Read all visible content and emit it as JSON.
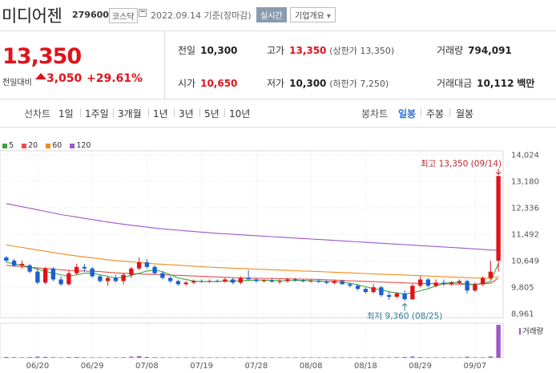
{
  "header": {
    "name": "미디어젠",
    "code": "279600",
    "market": "코스닥",
    "date": "2022.09.14 기준(장마감)",
    "live": "실시간",
    "info": "기업개요"
  },
  "quote": {
    "price": "13,350",
    "change_label": "전일대비",
    "change": "3,050",
    "change_pct": "+29.61%",
    "prev_label": "전일",
    "prev": "10,300",
    "open_label": "시가",
    "open": "10,650",
    "high_label": "고가",
    "high": "13,350",
    "high_note": "(상한가 13,350)",
    "low_label": "저가",
    "low": "10,300",
    "low_note": "(하한가 7,250)",
    "vol_label": "거래량",
    "vol": "794,091",
    "amt_label": "거래대금",
    "amt": "10,112",
    "amt_unit": "백만"
  },
  "period": {
    "line_label": "선차트",
    "line_tabs": [
      "1일",
      "1주일",
      "3개월",
      "1년",
      "3년",
      "5년",
      "10년"
    ],
    "candle_label": "봉차트",
    "candle_tabs": [
      "일봉",
      "주봉",
      "월봉"
    ],
    "active": "일봉"
  },
  "colors": {
    "up": "#e0131b",
    "down": "#1a5fd0",
    "ma5": "#3aa53a",
    "ma20": "#e84d4d",
    "ma60": "#f08a1c",
    "ma120": "#9b59c9"
  },
  "chart_data": {
    "type": "candlestick",
    "legend": [
      {
        "name": "5",
        "color": "#3aa53a"
      },
      {
        "name": "20",
        "color": "#e84d4d"
      },
      {
        "name": "60",
        "color": "#f08a1c"
      },
      {
        "name": "120",
        "color": "#9b59c9"
      }
    ],
    "y_ticks": [
      "14,024",
      "13,180",
      "12,336",
      "11,492",
      "10,649",
      "9,805",
      "8,961"
    ],
    "ylim": [
      8961,
      14024
    ],
    "x_ticks": [
      "06/20",
      "06/29",
      "07/08",
      "07/19",
      "07/28",
      "08/08",
      "08/18",
      "08/29",
      "09/07"
    ],
    "annot_high": "최고 13,350 (09/14)",
    "annot_low": "최저 9,360 (08/25)",
    "volume_label": "거래량",
    "candles": [
      {
        "d": "06/14",
        "o": 10750,
        "h": 10800,
        "l": 10600,
        "c": 10650
      },
      {
        "d": "06/15",
        "o": 10650,
        "h": 10700,
        "l": 10450,
        "c": 10500
      },
      {
        "d": "06/16",
        "o": 10500,
        "h": 10650,
        "l": 10400,
        "c": 10550
      },
      {
        "d": "06/17",
        "o": 10500,
        "h": 10550,
        "l": 10250,
        "c": 10300
      },
      {
        "d": "06/20",
        "o": 10300,
        "h": 10400,
        "l": 9900,
        "c": 9950
      },
      {
        "d": "06/21",
        "o": 9950,
        "h": 10450,
        "l": 9900,
        "c": 10400
      },
      {
        "d": "06/22",
        "o": 10400,
        "h": 10450,
        "l": 10000,
        "c": 10050
      },
      {
        "d": "06/23",
        "o": 10050,
        "h": 10150,
        "l": 9850,
        "c": 9900
      },
      {
        "d": "06/24",
        "o": 9900,
        "h": 10350,
        "l": 9850,
        "c": 10250
      },
      {
        "d": "06/27",
        "o": 10250,
        "h": 10550,
        "l": 10200,
        "c": 10450
      },
      {
        "d": "06/28",
        "o": 10450,
        "h": 10550,
        "l": 10300,
        "c": 10400
      },
      {
        "d": "06/29",
        "o": 10400,
        "h": 10450,
        "l": 10100,
        "c": 10150
      },
      {
        "d": "06/30",
        "o": 10150,
        "h": 10200,
        "l": 9950,
        "c": 10000
      },
      {
        "d": "07/01",
        "o": 10000,
        "h": 10150,
        "l": 9850,
        "c": 10100
      },
      {
        "d": "07/04",
        "o": 10100,
        "h": 10200,
        "l": 9950,
        "c": 10000
      },
      {
        "d": "07/05",
        "o": 10000,
        "h": 10250,
        "l": 9900,
        "c": 10200
      },
      {
        "d": "07/06",
        "o": 10200,
        "h": 10450,
        "l": 10100,
        "c": 10400
      },
      {
        "d": "07/07",
        "o": 10400,
        "h": 10750,
        "l": 10350,
        "c": 10600
      },
      {
        "d": "07/08",
        "o": 10600,
        "h": 10700,
        "l": 10400,
        "c": 10450
      },
      {
        "d": "07/11",
        "o": 10450,
        "h": 10500,
        "l": 10200,
        "c": 10250
      },
      {
        "d": "07/12",
        "o": 10250,
        "h": 10300,
        "l": 10050,
        "c": 10100
      },
      {
        "d": "07/13",
        "o": 10100,
        "h": 10150,
        "l": 9950,
        "c": 10000
      },
      {
        "d": "07/14",
        "o": 10000,
        "h": 10050,
        "l": 9850,
        "c": 9900
      },
      {
        "d": "07/15",
        "o": 9900,
        "h": 10000,
        "l": 9850,
        "c": 9950
      },
      {
        "d": "07/18",
        "o": 9950,
        "h": 10050,
        "l": 9900,
        "c": 10000
      },
      {
        "d": "07/19",
        "o": 10000,
        "h": 10050,
        "l": 9950,
        "c": 9980
      },
      {
        "d": "07/20",
        "o": 9980,
        "h": 10050,
        "l": 9950,
        "c": 10000
      },
      {
        "d": "07/21",
        "o": 10000,
        "h": 10050,
        "l": 9960,
        "c": 9990
      },
      {
        "d": "07/22",
        "o": 9990,
        "h": 10100,
        "l": 9950,
        "c": 10050
      },
      {
        "d": "07/25",
        "o": 10050,
        "h": 10100,
        "l": 9900,
        "c": 9950
      },
      {
        "d": "07/26",
        "o": 9950,
        "h": 10150,
        "l": 9900,
        "c": 10100
      },
      {
        "d": "07/27",
        "o": 10100,
        "h": 10350,
        "l": 10050,
        "c": 10050
      },
      {
        "d": "07/28",
        "o": 10050,
        "h": 10100,
        "l": 9950,
        "c": 10000
      },
      {
        "d": "07/29",
        "o": 10000,
        "h": 10050,
        "l": 9950,
        "c": 10020
      },
      {
        "d": "08/01",
        "o": 10020,
        "h": 10100,
        "l": 9950,
        "c": 9980
      },
      {
        "d": "08/02",
        "o": 9980,
        "h": 10050,
        "l": 9900,
        "c": 10000
      },
      {
        "d": "08/03",
        "o": 10000,
        "h": 10100,
        "l": 9950,
        "c": 10050
      },
      {
        "d": "08/04",
        "o": 10050,
        "h": 10100,
        "l": 9980,
        "c": 10020
      },
      {
        "d": "08/05",
        "o": 10020,
        "h": 10060,
        "l": 9960,
        "c": 9990
      },
      {
        "d": "08/08",
        "o": 9990,
        "h": 10050,
        "l": 9950,
        "c": 10010
      },
      {
        "d": "08/09",
        "o": 10010,
        "h": 10050,
        "l": 9950,
        "c": 9970
      },
      {
        "d": "08/10",
        "o": 9970,
        "h": 10020,
        "l": 9900,
        "c": 9940
      },
      {
        "d": "08/11",
        "o": 9940,
        "h": 10050,
        "l": 9900,
        "c": 10000
      },
      {
        "d": "08/12",
        "o": 10000,
        "h": 10050,
        "l": 9880,
        "c": 9900
      },
      {
        "d": "08/16",
        "o": 9900,
        "h": 9950,
        "l": 9800,
        "c": 9850
      },
      {
        "d": "08/17",
        "o": 9850,
        "h": 9900,
        "l": 9700,
        "c": 9750
      },
      {
        "d": "08/18",
        "o": 9750,
        "h": 9800,
        "l": 9600,
        "c": 9650
      },
      {
        "d": "08/19",
        "o": 9650,
        "h": 9900,
        "l": 9600,
        "c": 9800
      },
      {
        "d": "08/22",
        "o": 9800,
        "h": 9850,
        "l": 9500,
        "c": 9550
      },
      {
        "d": "08/23",
        "o": 9550,
        "h": 9650,
        "l": 9400,
        "c": 9500
      },
      {
        "d": "08/24",
        "o": 9500,
        "h": 9650,
        "l": 9450,
        "c": 9600
      },
      {
        "d": "08/25",
        "o": 9600,
        "h": 9700,
        "l": 9360,
        "c": 9420
      },
      {
        "d": "08/26",
        "o": 9420,
        "h": 9900,
        "l": 9400,
        "c": 9850
      },
      {
        "d": "08/29",
        "o": 9850,
        "h": 10150,
        "l": 9800,
        "c": 10050
      },
      {
        "d": "08/30",
        "o": 10050,
        "h": 10100,
        "l": 9800,
        "c": 9850
      },
      {
        "d": "08/31",
        "o": 9850,
        "h": 10050,
        "l": 9800,
        "c": 9950
      },
      {
        "d": "09/01",
        "o": 9950,
        "h": 10050,
        "l": 9850,
        "c": 9900
      },
      {
        "d": "09/02",
        "o": 9900,
        "h": 10000,
        "l": 9850,
        "c": 9950
      },
      {
        "d": "09/05",
        "o": 9950,
        "h": 10050,
        "l": 9900,
        "c": 10000
      },
      {
        "d": "09/06",
        "o": 10000,
        "h": 10050,
        "l": 9600,
        "c": 9700
      },
      {
        "d": "09/07",
        "o": 9700,
        "h": 9950,
        "l": 9650,
        "c": 9900
      },
      {
        "d": "09/08",
        "o": 9900,
        "h": 10150,
        "l": 9850,
        "c": 10100
      },
      {
        "d": "09/13",
        "o": 10100,
        "h": 10650,
        "l": 10050,
        "c": 10300
      },
      {
        "d": "09/14",
        "o": 10650,
        "h": 13350,
        "l": 10300,
        "c": 13350
      }
    ],
    "ma5": [
      10600,
      10550,
      10500,
      10450,
      10380,
      10300,
      10250,
      10200,
      10150,
      10200,
      10250,
      10250,
      10200,
      10150,
      10100,
      10120,
      10180,
      10250,
      10320,
      10350,
      10300,
      10200,
      10100,
      10050,
      10000,
      9980,
      9980,
      9990,
      10000,
      10000,
      10010,
      10020,
      10030,
      10030,
      10020,
      10010,
      10010,
      10020,
      10020,
      10010,
      10000,
      9990,
      9980,
      9960,
      9930,
      9880,
      9820,
      9760,
      9720,
      9660,
      9620,
      9590,
      9620,
      9690,
      9760,
      9840,
      9920,
      9960,
      9940,
      9890,
      9890,
      9930,
      9990,
      10560
    ],
    "ma20": [
      10500,
      10480,
      10460,
      10440,
      10420,
      10400,
      10380,
      10360,
      10340,
      10330,
      10320,
      10310,
      10300,
      10280,
      10260,
      10250,
      10240,
      10230,
      10220,
      10210,
      10200,
      10190,
      10180,
      10170,
      10160,
      10150,
      10140,
      10130,
      10120,
      10110,
      10100,
      10095,
      10090,
      10085,
      10080,
      10075,
      10070,
      10065,
      10060,
      10055,
      10050,
      10040,
      10030,
      10020,
      10010,
      10000,
      9990,
      9980,
      9970,
      9960,
      9950,
      9940,
      9930,
      9925,
      9920,
      9915,
      9910,
      9905,
      9900,
      9900,
      9900,
      9910,
      9930,
      10100
    ],
    "ma60": [
      11150,
      11110,
      11070,
      11030,
      10990,
      10950,
      10910,
      10870,
      10830,
      10800,
      10770,
      10740,
      10710,
      10680,
      10650,
      10630,
      10610,
      10590,
      10570,
      10550,
      10535,
      10520,
      10505,
      10490,
      10475,
      10460,
      10445,
      10430,
      10420,
      10410,
      10400,
      10390,
      10380,
      10370,
      10360,
      10350,
      10340,
      10330,
      10320,
      10310,
      10300,
      10290,
      10280,
      10270,
      10260,
      10250,
      10240,
      10230,
      10220,
      10210,
      10200,
      10190,
      10180,
      10170,
      10160,
      10150,
      10140,
      10130,
      10120,
      10110,
      10100,
      10090,
      10085,
      10150
    ],
    "ma120": [
      12470,
      12420,
      12370,
      12320,
      12270,
      12220,
      12170,
      12120,
      12080,
      12040,
      12000,
      11960,
      11920,
      11880,
      11845,
      11810,
      11780,
      11750,
      11720,
      11690,
      11665,
      11640,
      11620,
      11600,
      11580,
      11560,
      11540,
      11520,
      11505,
      11490,
      11475,
      11460,
      11445,
      11430,
      11415,
      11400,
      11385,
      11370,
      11355,
      11340,
      11325,
      11310,
      11295,
      11280,
      11265,
      11250,
      11235,
      11220,
      11205,
      11190,
      11175,
      11160,
      11145,
      11130,
      11115,
      11100,
      11085,
      11070,
      11055,
      11040,
      11025,
      11010,
      10990,
      10980
    ],
    "volume": [
      20,
      15,
      12,
      18,
      28,
      22,
      14,
      10,
      16,
      18,
      12,
      10,
      9,
      11,
      10,
      14,
      26,
      38,
      20,
      14,
      10,
      8,
      9,
      7,
      6,
      5,
      6,
      5,
      7,
      9,
      8,
      12,
      7,
      5,
      6,
      5,
      6,
      5,
      5,
      6,
      5,
      6,
      7,
      6,
      8,
      9,
      10,
      11,
      9,
      12,
      14,
      20,
      30,
      16,
      10,
      8,
      9,
      7,
      8,
      25,
      10,
      12,
      30,
      794
    ]
  }
}
